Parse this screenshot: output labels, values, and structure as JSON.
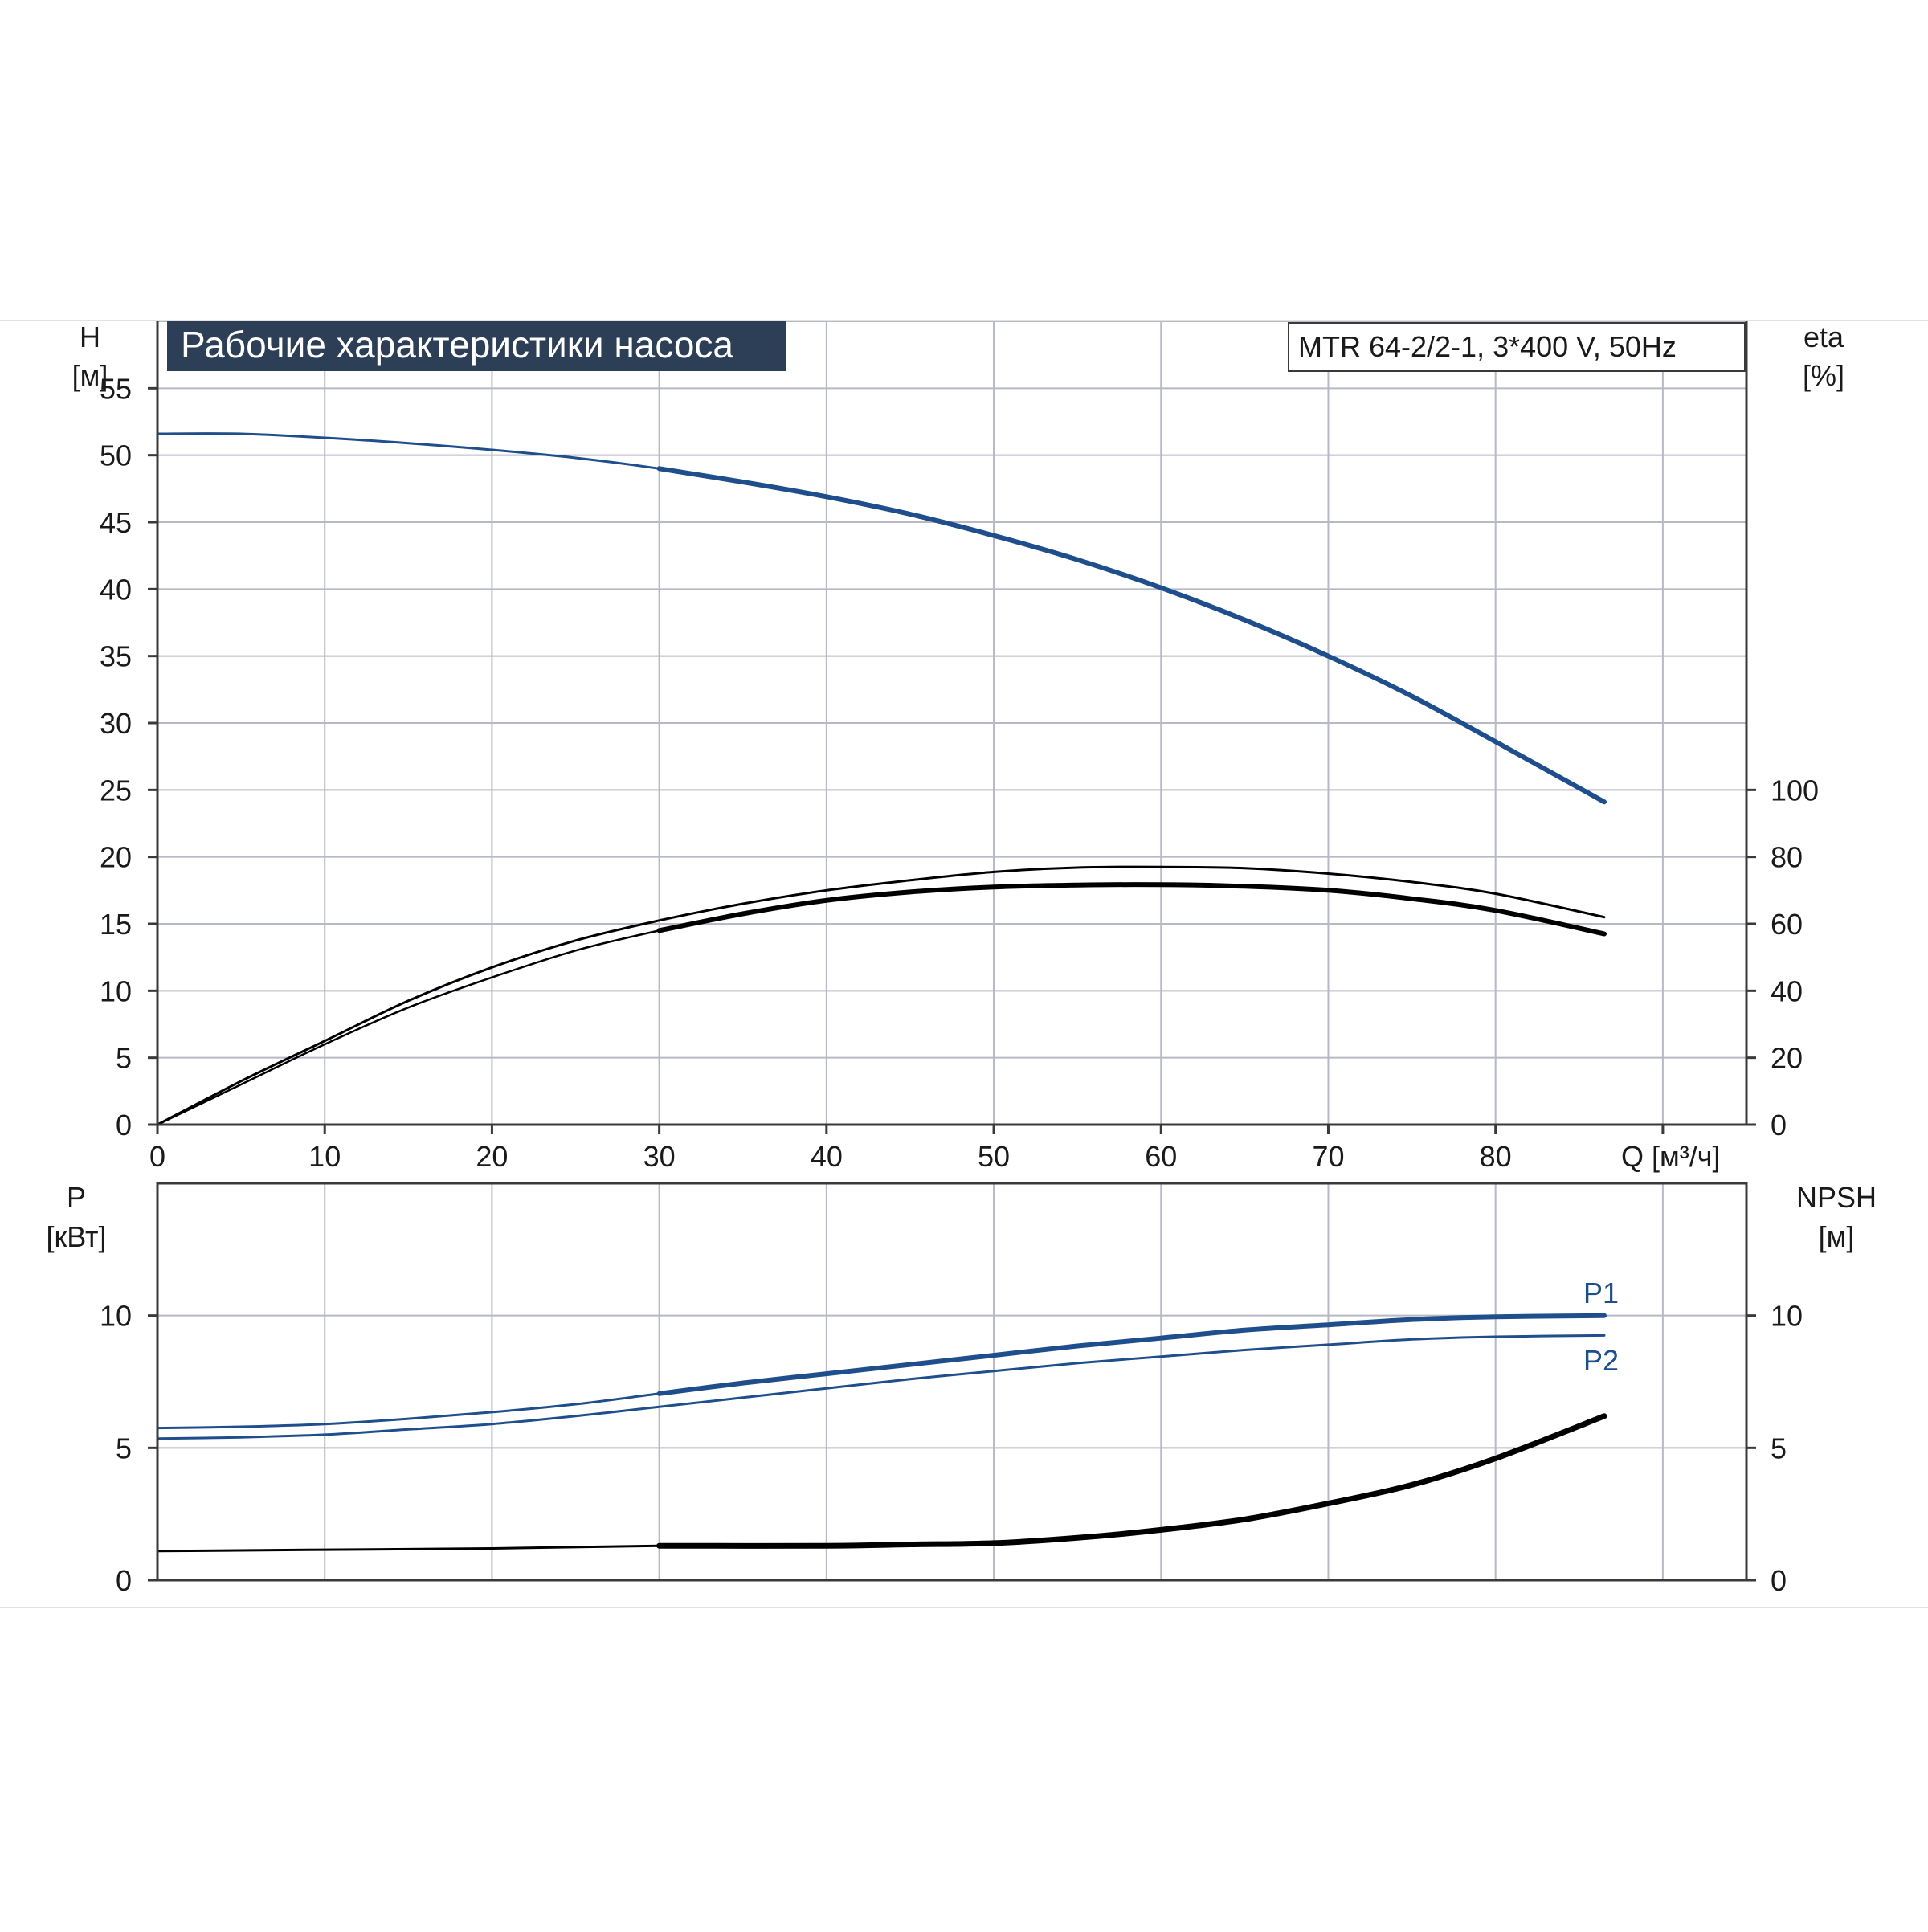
{
  "chart_data": [
    {
      "type": "line",
      "title": "Рабочие характеристики насоса",
      "subtitle": "MTR 64-2/2-1, 3*400 V, 50Hz",
      "xlabel": "Q [м³/ч]",
      "ylabel_left": [
        "H",
        "[м]"
      ],
      "ylabel_right": [
        "eta",
        "[%]"
      ],
      "xlim": [
        0,
        95
      ],
      "ylim_left": [
        0,
        60
      ],
      "ylim_right": [
        0,
        240
      ],
      "x_ticks": [
        "0",
        "10",
        "20",
        "30",
        "40",
        "50",
        "60",
        "70",
        "80"
      ],
      "y_ticks_left": [
        "0",
        "5",
        "10",
        "15",
        "20",
        "25",
        "30",
        "35",
        "40",
        "45",
        "50",
        "55"
      ],
      "y_ticks_right": [
        "0",
        "20",
        "40",
        "60",
        "80",
        "100"
      ],
      "grid": true,
      "series": [
        {
          "role": "H",
          "axis": "left",
          "color": "#1f4e8c",
          "x": [
            0,
            5,
            10,
            15,
            20,
            25,
            30,
            35,
            40,
            45,
            50,
            55,
            60,
            65,
            70,
            75,
            80,
            86.5
          ],
          "y": [
            51.6,
            51.6,
            51.3,
            50.9,
            50.4,
            49.8,
            49.0,
            48.0,
            46.9,
            45.6,
            44.0,
            42.2,
            40.1,
            37.7,
            35.0,
            32.0,
            28.6,
            24.1
          ]
        },
        {
          "role": "eta",
          "axis": "right",
          "color": "#000000",
          "x": [
            0,
            5,
            10,
            15,
            20,
            25,
            30,
            35,
            40,
            45,
            50,
            55,
            60,
            65,
            70,
            75,
            80,
            86.5
          ],
          "y": [
            0,
            12,
            24,
            35,
            44,
            52,
            58,
            63,
            67,
            69.5,
            71,
            71.6,
            71.7,
            71.2,
            70,
            67.5,
            64,
            57
          ]
        },
        {
          "role": "eta-thin",
          "axis": "right",
          "color": "#000000",
          "x": [
            0,
            5,
            10,
            15,
            20,
            25,
            30,
            35,
            40,
            45,
            50,
            55,
            60,
            65,
            70,
            75,
            80,
            86.5
          ],
          "y": [
            0,
            13,
            25,
            37,
            47,
            55,
            61,
            66,
            70,
            73,
            75.5,
            76.8,
            77,
            76.6,
            75,
            72.5,
            69,
            62
          ]
        }
      ]
    },
    {
      "type": "line",
      "xlim": [
        0,
        95
      ],
      "ylim_left": [
        0,
        15
      ],
      "ylim_right": [
        0,
        15
      ],
      "ylabel_left": [
        "P",
        "[кВт]"
      ],
      "ylabel_right": [
        "NPSH",
        "[м]"
      ],
      "y_ticks_left": [
        "0",
        "5",
        "10"
      ],
      "y_ticks_right": [
        "0",
        "5",
        "10"
      ],
      "grid": true,
      "series": [
        {
          "name": "P1",
          "axis": "left",
          "color": "#1f4e8c",
          "x": [
            0,
            5,
            10,
            15,
            20,
            25,
            30,
            35,
            40,
            45,
            50,
            55,
            60,
            65,
            70,
            75,
            80,
            86.5
          ],
          "y": [
            5.75,
            5.8,
            5.9,
            6.1,
            6.35,
            6.65,
            7.05,
            7.45,
            7.8,
            8.15,
            8.5,
            8.85,
            9.15,
            9.45,
            9.65,
            9.85,
            9.95,
            10.0
          ]
        },
        {
          "name": "P2",
          "axis": "left",
          "color": "#1f4e8c",
          "x": [
            0,
            5,
            10,
            15,
            20,
            25,
            30,
            35,
            40,
            45,
            50,
            55,
            60,
            65,
            70,
            75,
            80,
            86.5
          ],
          "y": [
            5.35,
            5.4,
            5.5,
            5.7,
            5.9,
            6.2,
            6.55,
            6.9,
            7.25,
            7.6,
            7.9,
            8.2,
            8.45,
            8.7,
            8.9,
            9.1,
            9.2,
            9.25
          ]
        },
        {
          "role": "NPSH",
          "axis": "right",
          "color": "#000000",
          "x": [
            0,
            10,
            20,
            30,
            40,
            45,
            50,
            55,
            60,
            65,
            70,
            75,
            80,
            86.5
          ],
          "y": [
            1.1,
            1.15,
            1.2,
            1.3,
            1.3,
            1.35,
            1.4,
            1.6,
            1.9,
            2.3,
            2.9,
            3.6,
            4.6,
            6.2
          ]
        }
      ]
    }
  ],
  "colors": {
    "title_bg": "#2c3f57",
    "title_text": "#ffffff",
    "grid": "#b7b9c4",
    "frame": "#3a3a3a"
  }
}
